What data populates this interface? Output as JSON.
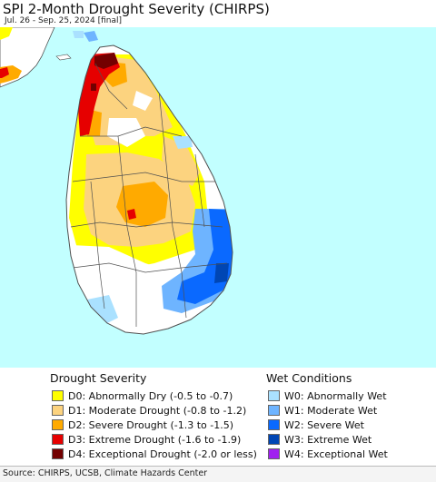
{
  "header": {
    "title": "SPI 2-Month Drought Severity (CHIRPS)",
    "subtitle": "Jul. 26 - Sep. 25, 2024 [final]"
  },
  "colors": {
    "ocean": "#c2ffff",
    "land": "#ffffff",
    "boundary": "#505050",
    "D0": "#ffff00",
    "D1": "#fcd37f",
    "D2": "#ffaa00",
    "D3": "#e60000",
    "D4": "#730000",
    "W0": "#aae1ff",
    "W1": "#6eb4ff",
    "W2": "#0a69ff",
    "W3": "#0046b4",
    "W4": "#a020f0"
  },
  "legend": {
    "drought": {
      "heading": "Drought Severity",
      "items": [
        {
          "code": "D0",
          "label": "D0: Abnormally Dry (-0.5 to -0.7)",
          "color": "#ffff00"
        },
        {
          "code": "D1",
          "label": "D1: Moderate Drought (-0.8 to -1.2)",
          "color": "#fcd37f"
        },
        {
          "code": "D2",
          "label": "D2: Severe Drought (-1.3 to -1.5)",
          "color": "#ffaa00"
        },
        {
          "code": "D3",
          "label": "D3: Extreme Drought (-1.6 to -1.9)",
          "color": "#e60000"
        },
        {
          "code": "D4",
          "label": "D4: Exceptional Drought (-2.0 or less)",
          "color": "#730000"
        }
      ]
    },
    "wet": {
      "heading": "Wet Conditions",
      "items": [
        {
          "code": "W0",
          "label": "W0: Abnormally Wet",
          "color": "#aae1ff"
        },
        {
          "code": "W1",
          "label": "W1: Moderate Wet",
          "color": "#6eb4ff"
        },
        {
          "code": "W2",
          "label": "W2: Severe Wet",
          "color": "#0a69ff"
        },
        {
          "code": "W3",
          "label": "W3: Extreme Wet",
          "color": "#0046b4"
        },
        {
          "code": "W4",
          "label": "W4: Exceptional Wet",
          "color": "#a020f0"
        }
      ]
    }
  },
  "footer": {
    "source": "Source: CHIRPS, UCSB, Climate Hazards Center"
  }
}
